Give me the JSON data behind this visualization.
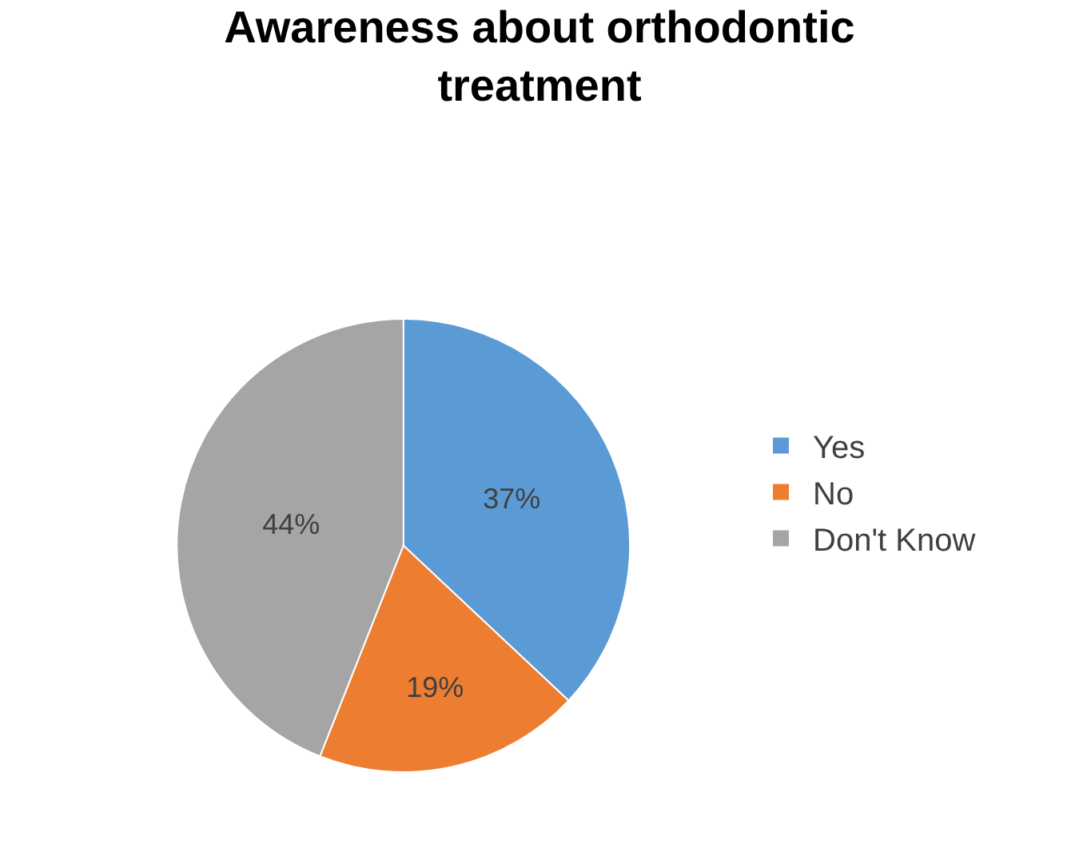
{
  "chart_data": {
    "type": "pie",
    "title": "Awareness about orthodontic treatment",
    "categories": [
      "Yes",
      "No",
      "Don't Know"
    ],
    "values": [
      37,
      19,
      44
    ],
    "colors": [
      "#5b9bd5",
      "#ed7d31",
      "#a5a5a5"
    ],
    "value_labels": [
      "37%",
      "19%",
      "44%"
    ],
    "legend": "right"
  }
}
